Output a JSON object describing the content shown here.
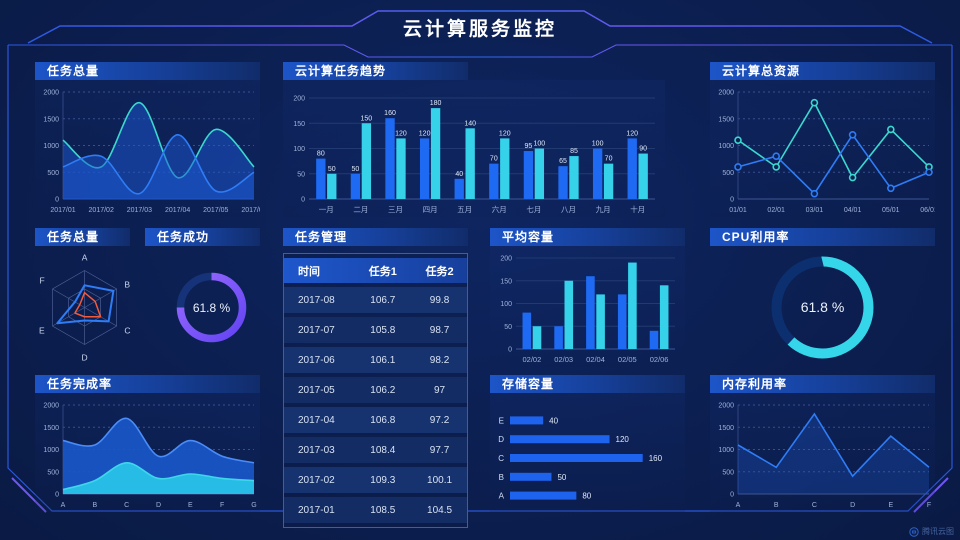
{
  "header": {
    "title": "云计算服务监控"
  },
  "watermark": {
    "label": "腾讯云图"
  },
  "panels": {
    "task_total_line": {
      "title": "任务总量"
    },
    "cloud_task_trend": {
      "title": "云计算任务趋势"
    },
    "cloud_total_resource": {
      "title": "云计算总资源"
    },
    "task_total_radar": {
      "title": "任务总量"
    },
    "task_success": {
      "title": "任务成功"
    },
    "task_manage": {
      "title": "任务管理"
    },
    "avg_capacity": {
      "title": "平均容量"
    },
    "cpu_util": {
      "title": "CPU利用率"
    },
    "task_completion": {
      "title": "任务完成率"
    },
    "storage": {
      "title": "存储容量"
    },
    "memory_util": {
      "title": "内存利用率"
    }
  },
  "table": {
    "headers": [
      "时间",
      "任务1",
      "任务2"
    ],
    "rows": [
      [
        "2017-08",
        "106.7",
        "99.8"
      ],
      [
        "2017-07",
        "105.8",
        "98.7"
      ],
      [
        "2017-06",
        "106.1",
        "98.2"
      ],
      [
        "2017-05",
        "106.2",
        "97"
      ],
      [
        "2017-04",
        "106.8",
        "97.2"
      ],
      [
        "2017-03",
        "108.4",
        "97.7"
      ],
      [
        "2017-02",
        "109.3",
        "100.1"
      ],
      [
        "2017-01",
        "108.5",
        "104.5"
      ]
    ]
  },
  "chart_data": [
    {
      "id": "task_total_area",
      "type": "area",
      "title": "任务总量",
      "x": [
        "2017/01",
        "2017/02",
        "2017/03",
        "2017/04",
        "2017/05",
        "2017/06"
      ],
      "ylim": [
        0,
        2000
      ],
      "yticks": [
        0,
        500,
        1000,
        1500,
        2000
      ],
      "grid": "dashed",
      "smooth": true,
      "series": [
        {
          "name": "cyan",
          "color": "#3bd8cf",
          "fill": "rgba(28,88,212,0.5)",
          "values": [
            1100,
            600,
            1800,
            400,
            1300,
            600
          ]
        },
        {
          "name": "blue",
          "color": "#2e7cf6",
          "fill": "rgba(28,88,212,0.5)",
          "values": [
            600,
            800,
            100,
            1200,
            150,
            500
          ]
        }
      ]
    },
    {
      "id": "cloud_task_trend",
      "type": "bar",
      "title": "云计算任务趋势",
      "categories": [
        "一月",
        "二月",
        "三月",
        "四月",
        "五月",
        "六月",
        "七月",
        "八月",
        "九月",
        "十月"
      ],
      "ylim": [
        0,
        200
      ],
      "yticks": [
        0,
        50,
        100,
        150,
        200
      ],
      "show_values": true,
      "series": [
        {
          "name": "blue",
          "color": "#1e6af2",
          "values": [
            80,
            50,
            160,
            120,
            40,
            70,
            95,
            65,
            100,
            120
          ]
        },
        {
          "name": "cyan",
          "color": "#35d2ea",
          "values": [
            50,
            150,
            120,
            180,
            140,
            120,
            100,
            85,
            70,
            90
          ]
        }
      ]
    },
    {
      "id": "cloud_total_resource",
      "type": "line",
      "title": "云计算总资源",
      "x": [
        "01/01",
        "02/01",
        "03/01",
        "04/01",
        "05/01",
        "06/01"
      ],
      "ylim": [
        0,
        2000
      ],
      "yticks": [
        0,
        500,
        1000,
        1500,
        2000
      ],
      "grid": "dashed",
      "markers": true,
      "series": [
        {
          "name": "cyan",
          "color": "#3bd8cf",
          "values": [
            1100,
            600,
            1800,
            400,
            1300,
            600
          ]
        },
        {
          "name": "blue",
          "color": "#2e7cf6",
          "values": [
            600,
            800,
            100,
            1200,
            200,
            500
          ]
        }
      ]
    },
    {
      "id": "task_total_radar",
      "type": "radar",
      "title": "任务总量",
      "axes": [
        "A",
        "B",
        "C",
        "D",
        "E",
        "F"
      ],
      "max": 100,
      "series": [
        {
          "name": "blue",
          "color": "#2e7cf6",
          "values": [
            60,
            90,
            75,
            35,
            85,
            30
          ]
        },
        {
          "name": "orange",
          "color": "#f4593a",
          "values": [
            40,
            33,
            50,
            25,
            30,
            15
          ]
        }
      ]
    },
    {
      "id": "task_success_donut",
      "type": "donut",
      "title": "任务成功",
      "label": "61.8 %",
      "percent": 61.8,
      "arc_percent": 75,
      "colors": [
        "#9a6bff",
        "#6243f2"
      ],
      "track": "#16337a",
      "radius": 31,
      "thickness": 7.5
    },
    {
      "id": "avg_capacity",
      "type": "bar",
      "title": "平均容量",
      "categories": [
        "02/02",
        "02/03",
        "02/04",
        "02/05",
        "02/06"
      ],
      "ylim": [
        0,
        200
      ],
      "yticks": [
        0,
        50,
        100,
        150,
        200
      ],
      "show_values": false,
      "series": [
        {
          "name": "blue",
          "color": "#1e6af2",
          "values": [
            80,
            50,
            160,
            120,
            40
          ]
        },
        {
          "name": "cyan",
          "color": "#35d2ea",
          "values": [
            50,
            150,
            120,
            190,
            140
          ]
        }
      ]
    },
    {
      "id": "cpu_util_donut",
      "type": "donut",
      "title": "CPU利用率",
      "label": "61.8 %",
      "percent": 61.8,
      "arc_percent": 62,
      "colors": [
        "#35d6ea",
        "#35d6ea"
      ],
      "track": "#0c306f",
      "radius": 46,
      "thickness": 10
    },
    {
      "id": "task_completion",
      "type": "area",
      "title": "任务完成率",
      "x": [
        "A",
        "B",
        "C",
        "D",
        "E",
        "F",
        "G"
      ],
      "ylim": [
        0,
        2000
      ],
      "yticks": [
        0,
        500,
        1000,
        1500,
        2000
      ],
      "grid": "dashed",
      "smooth": true,
      "series": [
        {
          "name": "blue",
          "color": "#4a8cf8",
          "fill": "rgba(26,87,200,0.92)",
          "values": [
            1200,
            1100,
            1700,
            850,
            1200,
            850,
            700
          ]
        },
        {
          "name": "cyan",
          "color": "#3fd6ea",
          "fill": "rgba(40,194,232,0.95)",
          "values": [
            100,
            300,
            700,
            350,
            450,
            350,
            300
          ]
        }
      ]
    },
    {
      "id": "storage_capacity",
      "type": "hbar",
      "title": "存储容量",
      "categories": [
        "E",
        "D",
        "C",
        "B",
        "A"
      ],
      "values": [
        40,
        120,
        160,
        50,
        80
      ],
      "xmax": 170,
      "color": "#1e63ee"
    },
    {
      "id": "memory_util",
      "type": "line",
      "title": "内存利用率",
      "x": [
        "A",
        "B",
        "C",
        "D",
        "E",
        "F"
      ],
      "ylim": [
        0,
        2000
      ],
      "yticks": [
        0,
        500,
        1000,
        1500,
        2000
      ],
      "grid": "dashed",
      "markers": false,
      "series": [
        {
          "name": "blue",
          "color": "#2e7cf6",
          "fill": "rgba(30,90,205,0.3)",
          "values": [
            1100,
            600,
            1800,
            400,
            1300,
            600
          ]
        }
      ]
    }
  ]
}
